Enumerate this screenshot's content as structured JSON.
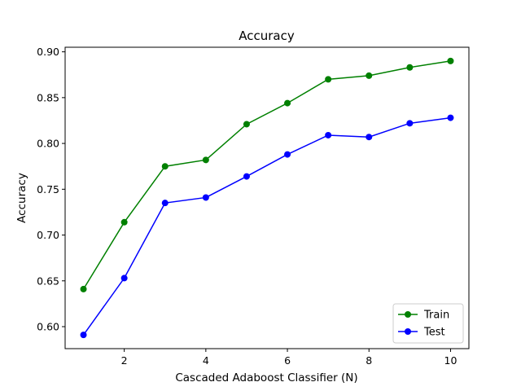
{
  "chart_data": {
    "type": "line",
    "title": "Accuracy",
    "xlabel": "Cascaded Adaboost Classifier (N)",
    "ylabel": "Accuracy",
    "x": [
      1,
      2,
      3,
      4,
      5,
      6,
      7,
      8,
      9,
      10
    ],
    "xlim": [
      0.55,
      10.45
    ],
    "ylim": [
      0.576,
      0.905
    ],
    "xticks": [
      2,
      4,
      6,
      8,
      10
    ],
    "yticks": [
      0.6,
      0.65,
      0.7,
      0.75,
      0.8,
      0.85,
      0.9
    ],
    "ytick_labels": [
      "0.60",
      "0.65",
      "0.70",
      "0.75",
      "0.80",
      "0.85",
      "0.90"
    ],
    "grid": false,
    "legend_position": "lower right",
    "series": [
      {
        "name": "Train",
        "color": "#008000",
        "marker": "circle",
        "values": [
          0.641,
          0.714,
          0.775,
          0.782,
          0.821,
          0.844,
          0.87,
          0.874,
          0.883,
          0.89
        ]
      },
      {
        "name": "Test",
        "color": "#0000ff",
        "marker": "circle",
        "values": [
          0.591,
          0.653,
          0.735,
          0.741,
          0.764,
          0.788,
          0.809,
          0.807,
          0.822,
          0.828
        ]
      }
    ]
  }
}
